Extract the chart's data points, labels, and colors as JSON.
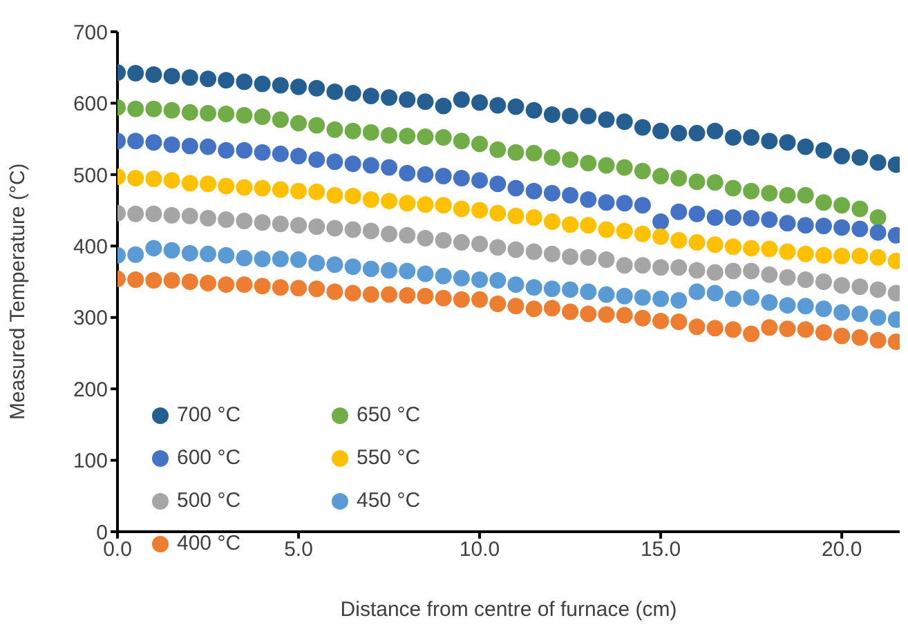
{
  "chart_data": {
    "type": "scatter",
    "xlabel": "Distance from centre of furnace (cm)",
    "ylabel": "Measured Temperature (°C)",
    "x": [
      0,
      0.5,
      1,
      1.5,
      2,
      2.5,
      3,
      3.5,
      4,
      4.5,
      5,
      5.5,
      6,
      6.5,
      7,
      7.5,
      8,
      8.5,
      9,
      9.5,
      10,
      10.5,
      11,
      11.5,
      12,
      12.5,
      13,
      13.5,
      14,
      14.5,
      15,
      15.5,
      16,
      16.5,
      17,
      17.5,
      18,
      18.5,
      19,
      19.5,
      20,
      20.5,
      21,
      21.5
    ],
    "series": [
      {
        "name": "700 °C",
        "color": "#255e91",
        "values": [
          643,
          642,
          640,
          638,
          636,
          634,
          632,
          630,
          627,
          625,
          623,
          621,
          616,
          614,
          610,
          608,
          605,
          602,
          596,
          605,
          601,
          597,
          595,
          590,
          584,
          582,
          582,
          577,
          574,
          566,
          561,
          558,
          558,
          561,
          552,
          552,
          547,
          545,
          539,
          534,
          526,
          524,
          517,
          514
        ]
      },
      {
        "name": "650 °C",
        "color": "#70ad47",
        "values": [
          594,
          592,
          592,
          590,
          587,
          586,
          585,
          583,
          581,
          577,
          572,
          569,
          563,
          561,
          559,
          555,
          554,
          553,
          552,
          547,
          543,
          535,
          531,
          530,
          524,
          521,
          516,
          513,
          510,
          505,
          498,
          495,
          490,
          489,
          481,
          477,
          474,
          471,
          471,
          461,
          457,
          452,
          440,
          null
        ]
      },
      {
        "name": "600 °C",
        "color": "#4472c4",
        "values": [
          547,
          547,
          545,
          542,
          540,
          539,
          534,
          534,
          531,
          529,
          526,
          521,
          518,
          515,
          513,
          510,
          502,
          500,
          498,
          495,
          492,
          487,
          481,
          477,
          474,
          471,
          465,
          461,
          460,
          457,
          434,
          448,
          445,
          440,
          440,
          439,
          437,
          432,
          429,
          428,
          426,
          424,
          419,
          415
        ]
      },
      {
        "name": "550 °C",
        "color": "#ffc000",
        "values": [
          497,
          495,
          494,
          492,
          488,
          487,
          484,
          482,
          481,
          479,
          477,
          476,
          471,
          470,
          465,
          463,
          460,
          458,
          457,
          452,
          450,
          446,
          442,
          440,
          434,
          430,
          429,
          423,
          421,
          417,
          413,
          408,
          405,
          402,
          399,
          397,
          396,
          392,
          389,
          387,
          386,
          386,
          384,
          379
        ]
      },
      {
        "name": "500 °C",
        "color": "#a5a5a5",
        "values": [
          446,
          445,
          445,
          443,
          442,
          439,
          437,
          435,
          433,
          431,
          429,
          427,
          425,
          423,
          421,
          417,
          415,
          411,
          408,
          405,
          403,
          398,
          395,
          392,
          389,
          385,
          384,
          381,
          373,
          373,
          370,
          370,
          366,
          363,
          365,
          365,
          360,
          356,
          353,
          350,
          345,
          343,
          339,
          334
        ]
      },
      {
        "name": "450 °C",
        "color": "#5b9bd5",
        "values": [
          387,
          388,
          397,
          394,
          390,
          389,
          387,
          383,
          382,
          382,
          381,
          376,
          374,
          371,
          368,
          366,
          365,
          361,
          358,
          355,
          353,
          352,
          346,
          342,
          340,
          339,
          336,
          332,
          330,
          328,
          326,
          324,
          336,
          334,
          326,
          328,
          321,
          317,
          316,
          312,
          307,
          305,
          300,
          297
        ]
      },
      {
        "name": "400 °C",
        "color": "#ed7d31",
        "values": [
          354,
          353,
          352,
          352,
          350,
          348,
          346,
          346,
          344,
          342,
          341,
          340,
          336,
          334,
          332,
          332,
          331,
          330,
          327,
          325,
          325,
          319,
          316,
          312,
          313,
          308,
          305,
          304,
          303,
          299,
          295,
          294,
          287,
          285,
          283,
          277,
          286,
          284,
          283,
          279,
          274,
          272,
          268,
          266
        ]
      }
    ],
    "xlim": [
      0,
      21.6
    ],
    "xticks": [
      {
        "value": 0,
        "label": "0.0"
      },
      {
        "value": 5,
        "label": "5.0"
      },
      {
        "value": 10,
        "label": "10.0"
      },
      {
        "value": 15,
        "label": "15.0"
      },
      {
        "value": 20,
        "label": "20.0"
      }
    ],
    "ylim": [
      0,
      700
    ],
    "yticks": [
      0,
      100,
      200,
      300,
      400,
      500,
      600,
      700
    ],
    "grid": false,
    "legend": "bottom left",
    "marker": "circle"
  }
}
